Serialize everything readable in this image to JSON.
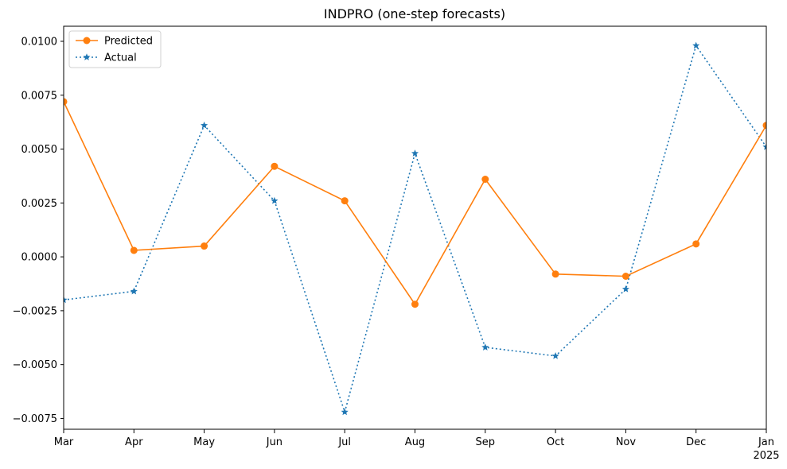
{
  "chart_data": {
    "type": "line",
    "title": "INDPRO (one-step forecasts)",
    "xlabel": "",
    "ylabel": "",
    "categories": [
      "Mar",
      "Apr",
      "May",
      "Jun",
      "Jul",
      "Aug",
      "Sep",
      "Oct",
      "Nov",
      "Dec",
      "Jan"
    ],
    "year_label": "2025",
    "ylim": [
      -0.008,
      0.0107
    ],
    "yticks": [
      -0.0075,
      -0.005,
      -0.0025,
      0.0,
      0.0025,
      0.005,
      0.0075,
      0.01
    ],
    "ytick_labels": [
      "−0.0075",
      "−0.0050",
      "−0.0025",
      "0.0000",
      "0.0025",
      "0.0050",
      "0.0075",
      "0.0100"
    ],
    "grid": false,
    "legend_position": "top-left",
    "series": [
      {
        "name": "Predicted",
        "color": "#ff7f0e",
        "line_style": "solid",
        "marker": "circle",
        "values": [
          0.0072,
          0.0003,
          0.0005,
          0.0042,
          0.0026,
          -0.0022,
          0.0036,
          -0.0008,
          -0.0009,
          0.0006,
          0.0061
        ]
      },
      {
        "name": "Actual",
        "color": "#1f77b4",
        "line_style": "dotted",
        "marker": "star",
        "values": [
          -0.002,
          -0.0016,
          0.0061,
          0.0026,
          -0.0072,
          0.0048,
          -0.0042,
          -0.0046,
          -0.0015,
          0.0098,
          0.0051
        ]
      }
    ]
  }
}
